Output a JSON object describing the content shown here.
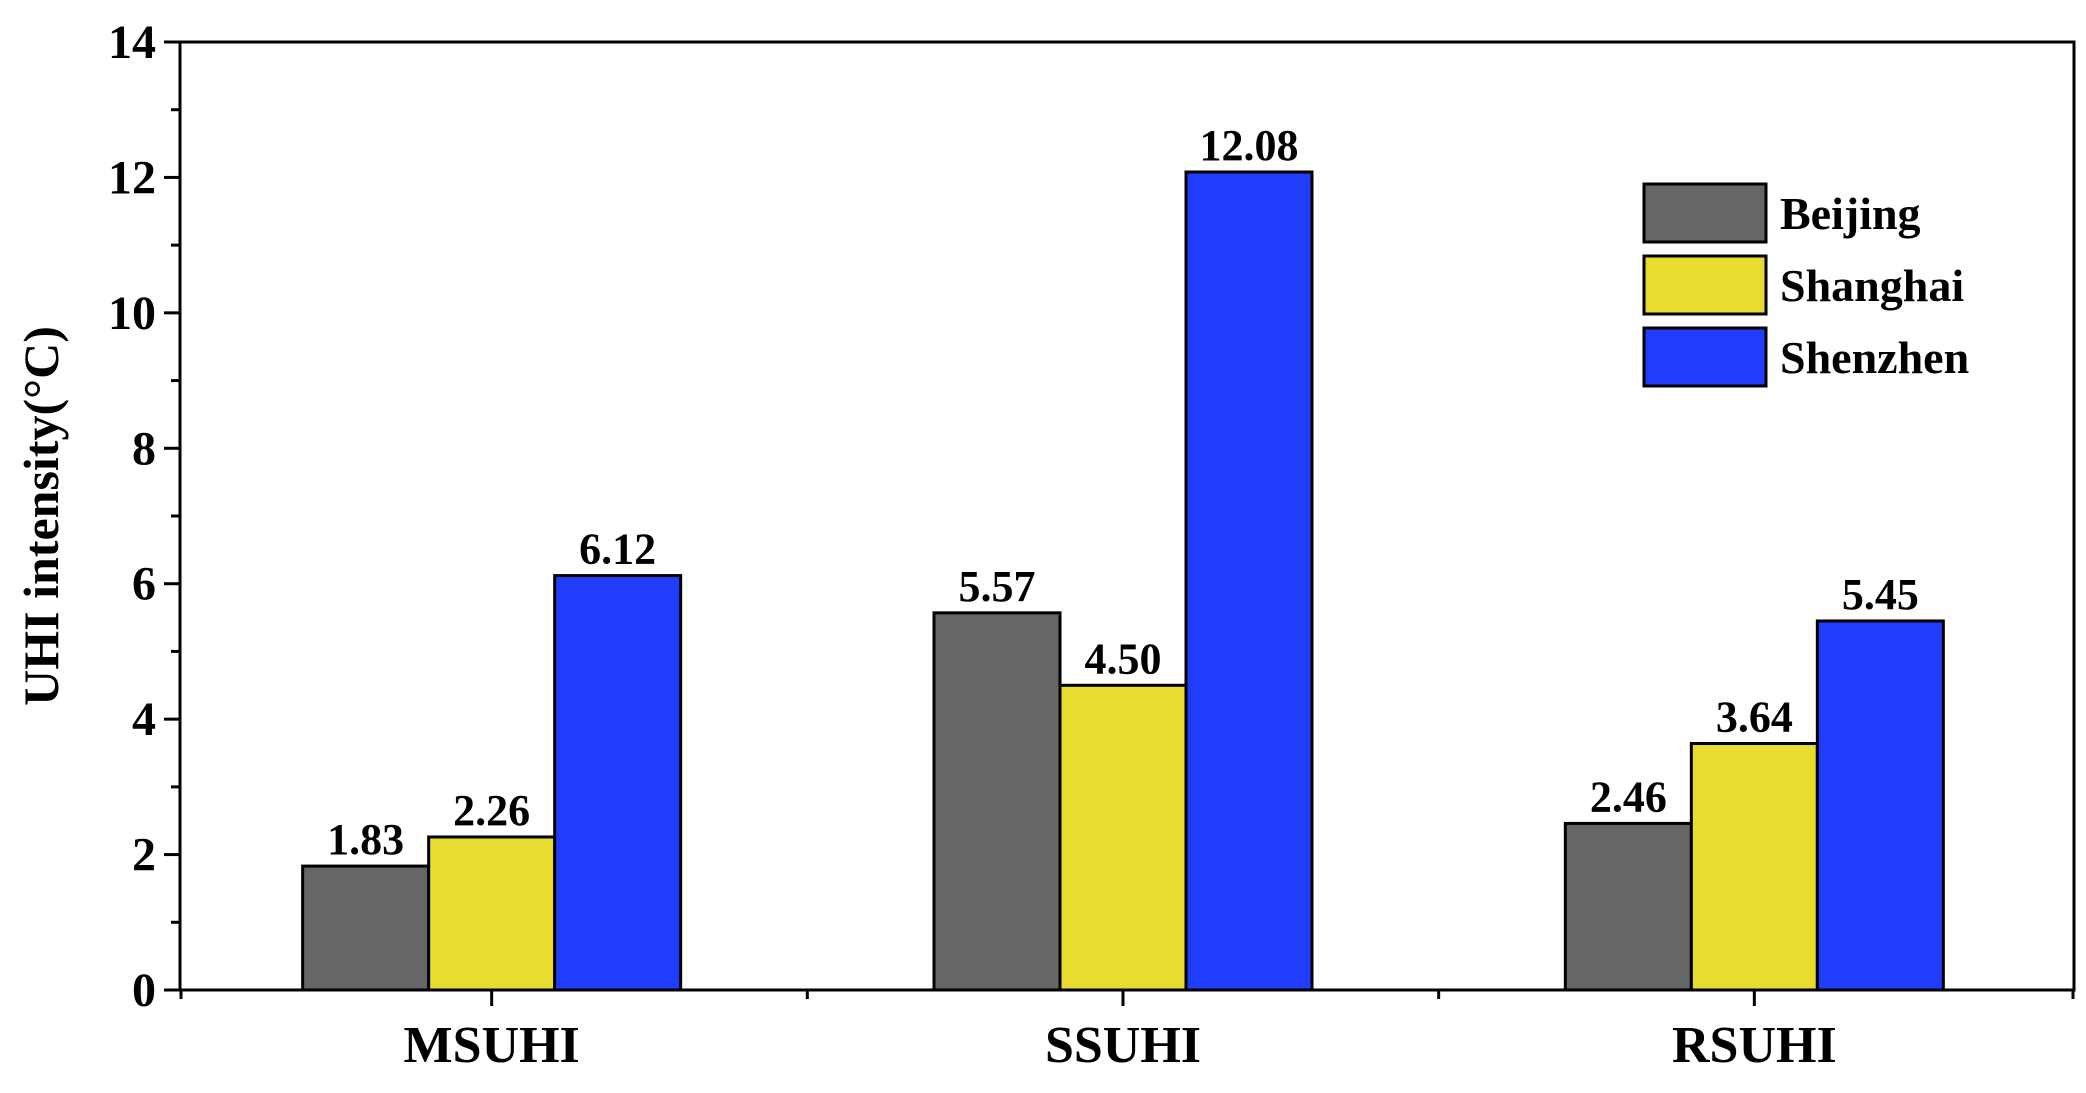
{
  "chart_data": {
    "type": "bar",
    "ylabel": "UHI intensity(°C)",
    "xlabel": "",
    "ylim": [
      0,
      14
    ],
    "yticks": [
      0,
      2,
      4,
      6,
      8,
      10,
      12,
      14
    ],
    "categories": [
      "MSUHI",
      "SSUHI",
      "RSUHI"
    ],
    "series": [
      {
        "name": "Beijing",
        "color": "#666666",
        "values": [
          1.83,
          5.57,
          2.46
        ],
        "labels": [
          "1.83",
          "5.57",
          "2.46"
        ]
      },
      {
        "name": "Shanghai",
        "color": "#e8dc30",
        "values": [
          2.26,
          4.5,
          3.64
        ],
        "labels": [
          "2.26",
          "4.50",
          "3.64"
        ]
      },
      {
        "name": "Shenzhen",
        "color": "#1f3dfb",
        "values": [
          6.12,
          12.08,
          5.45
        ],
        "labels": [
          "6.12",
          "12.08",
          "5.45"
        ]
      }
    ],
    "legend_position": "top-right",
    "grid": false
  }
}
